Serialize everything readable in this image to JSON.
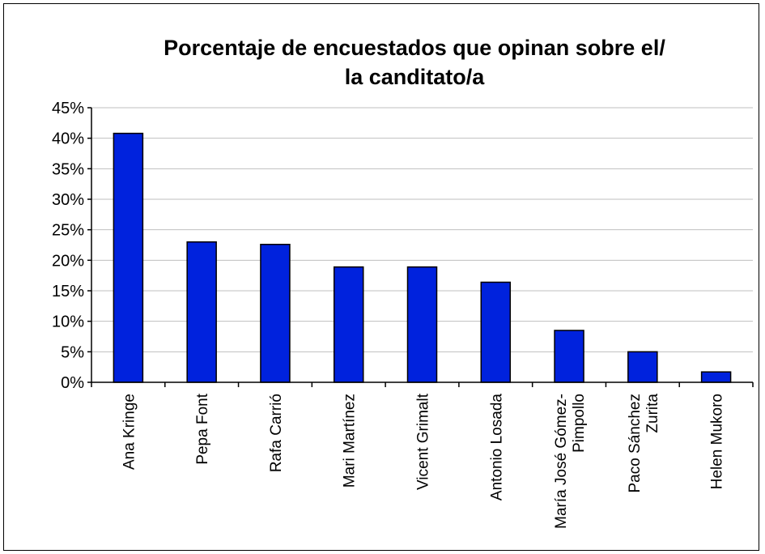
{
  "chart_data": {
    "type": "bar",
    "title": [
      "Porcentaje de encuestados que opinan sobre el/",
      "la canditato/a"
    ],
    "categories": [
      [
        "Ana Kringe"
      ],
      [
        "Pepa Font"
      ],
      [
        "Rafa Carrió"
      ],
      [
        "Mari Martínez"
      ],
      [
        "Vicent Grimalt"
      ],
      [
        "Antonio Losada"
      ],
      [
        "María José Gómez-",
        "Pimpollo"
      ],
      [
        "Paco Sánchez",
        "Zurita"
      ],
      [
        "Helen Mukoro"
      ]
    ],
    "values": [
      40.8,
      23.0,
      22.6,
      18.9,
      18.9,
      16.4,
      8.5,
      5.0,
      1.7
    ],
    "ylim": [
      0,
      45
    ],
    "yticks": [
      "0%",
      "5%",
      "10%",
      "15%",
      "20%",
      "25%",
      "30%",
      "35%",
      "40%",
      "45%"
    ],
    "ytick_values": [
      0,
      5,
      10,
      15,
      20,
      25,
      30,
      35,
      40,
      45
    ],
    "grid": true,
    "bar_color": "#0022dd",
    "grid_color": "#bfbfbf"
  }
}
